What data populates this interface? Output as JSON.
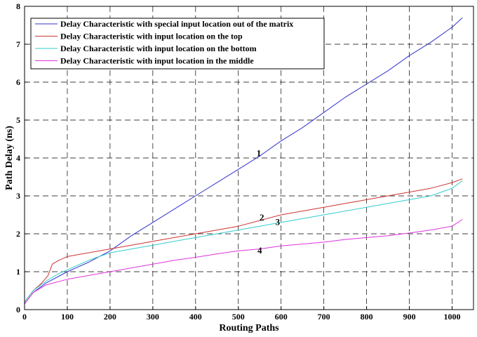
{
  "chart_data": {
    "type": "line",
    "xlabel": "Routing Paths",
    "ylabel": "Path Delay (ns)",
    "xlim": [
      0,
      1050
    ],
    "ylim": [
      0,
      8
    ],
    "xticks": [
      "0",
      "100",
      "200",
      "300",
      "400",
      "500",
      "600",
      "700",
      "800",
      "900",
      "1000"
    ],
    "yticks": [
      "0",
      "1",
      "2",
      "3",
      "4",
      "5",
      "6",
      "7",
      "8"
    ],
    "grid": true,
    "legend_position": "top-left",
    "series": [
      {
        "name": "Delay Characteristic with special input location out of the matrix",
        "color": "#3333cc",
        "x": [
          0,
          20,
          50,
          100,
          150,
          200,
          250,
          300,
          350,
          400,
          450,
          500,
          550,
          600,
          650,
          700,
          750,
          800,
          850,
          900,
          950,
          1000,
          1024
        ],
        "y": [
          0.15,
          0.45,
          0.7,
          1.0,
          1.25,
          1.55,
          1.95,
          2.3,
          2.65,
          3.0,
          3.35,
          3.7,
          4.05,
          4.45,
          4.8,
          5.2,
          5.6,
          5.95,
          6.3,
          6.7,
          7.05,
          7.45,
          7.7
        ]
      },
      {
        "name": "Delay Characteristic with input location on the top",
        "color": "#cc3333",
        "x": [
          0,
          20,
          40,
          55,
          65,
          80,
          100,
          150,
          200,
          250,
          300,
          350,
          400,
          450,
          500,
          550,
          600,
          650,
          700,
          750,
          800,
          850,
          900,
          950,
          1000,
          1024
        ],
        "y": [
          0.2,
          0.5,
          0.7,
          0.9,
          1.2,
          1.3,
          1.4,
          1.5,
          1.6,
          1.7,
          1.8,
          1.9,
          2.0,
          2.1,
          2.2,
          2.35,
          2.5,
          2.6,
          2.7,
          2.8,
          2.9,
          3.0,
          3.1,
          3.2,
          3.35,
          3.45
        ]
      },
      {
        "name": "Delay Characteristic with input location on the bottom",
        "color": "#33cccc",
        "x": [
          0,
          20,
          50,
          80,
          100,
          150,
          200,
          250,
          300,
          350,
          400,
          450,
          500,
          550,
          600,
          650,
          700,
          750,
          800,
          850,
          900,
          950,
          1000,
          1024
        ],
        "y": [
          0.2,
          0.5,
          0.75,
          0.95,
          1.05,
          1.3,
          1.5,
          1.6,
          1.7,
          1.8,
          1.9,
          2.0,
          2.1,
          2.2,
          2.3,
          2.4,
          2.5,
          2.6,
          2.7,
          2.8,
          2.9,
          3.0,
          3.2,
          3.4
        ]
      },
      {
        "name": "Delay Characteristic with input location in the middle",
        "color": "#dd33dd",
        "x": [
          0,
          20,
          50,
          100,
          150,
          200,
          250,
          300,
          350,
          400,
          450,
          500,
          550,
          600,
          650,
          700,
          750,
          800,
          850,
          900,
          950,
          1000,
          1024
        ],
        "y": [
          0.15,
          0.45,
          0.65,
          0.8,
          0.9,
          1.0,
          1.1,
          1.2,
          1.3,
          1.38,
          1.47,
          1.55,
          1.6,
          1.68,
          1.73,
          1.78,
          1.85,
          1.9,
          1.95,
          2.02,
          2.1,
          2.2,
          2.38
        ]
      }
    ],
    "annotations": [
      {
        "text": "1",
        "x": 548,
        "y": 4.05
      },
      {
        "text": "2",
        "x": 555,
        "y": 2.35
      },
      {
        "text": "3",
        "x": 592,
        "y": 2.23
      },
      {
        "text": "4",
        "x": 550,
        "y": 1.48
      }
    ]
  }
}
